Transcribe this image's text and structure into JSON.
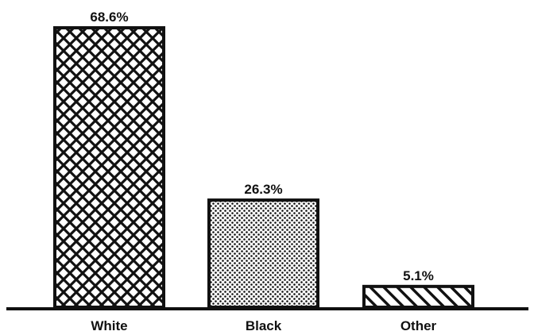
{
  "chart_data": {
    "type": "bar",
    "categories": [
      "White",
      "Black",
      "Other"
    ],
    "values": [
      68.6,
      26.3,
      5.1
    ],
    "value_labels": [
      "68.6%",
      "26.3%",
      "5.1%"
    ],
    "patterns": [
      "crosshatch",
      "dots",
      "diagonal"
    ],
    "title": "",
    "xlabel": "",
    "ylabel": "",
    "ylim": [
      0,
      68.6
    ],
    "grid": false,
    "legend": "none",
    "colors": {
      "ink": "#111111",
      "background": "#ffffff"
    }
  }
}
